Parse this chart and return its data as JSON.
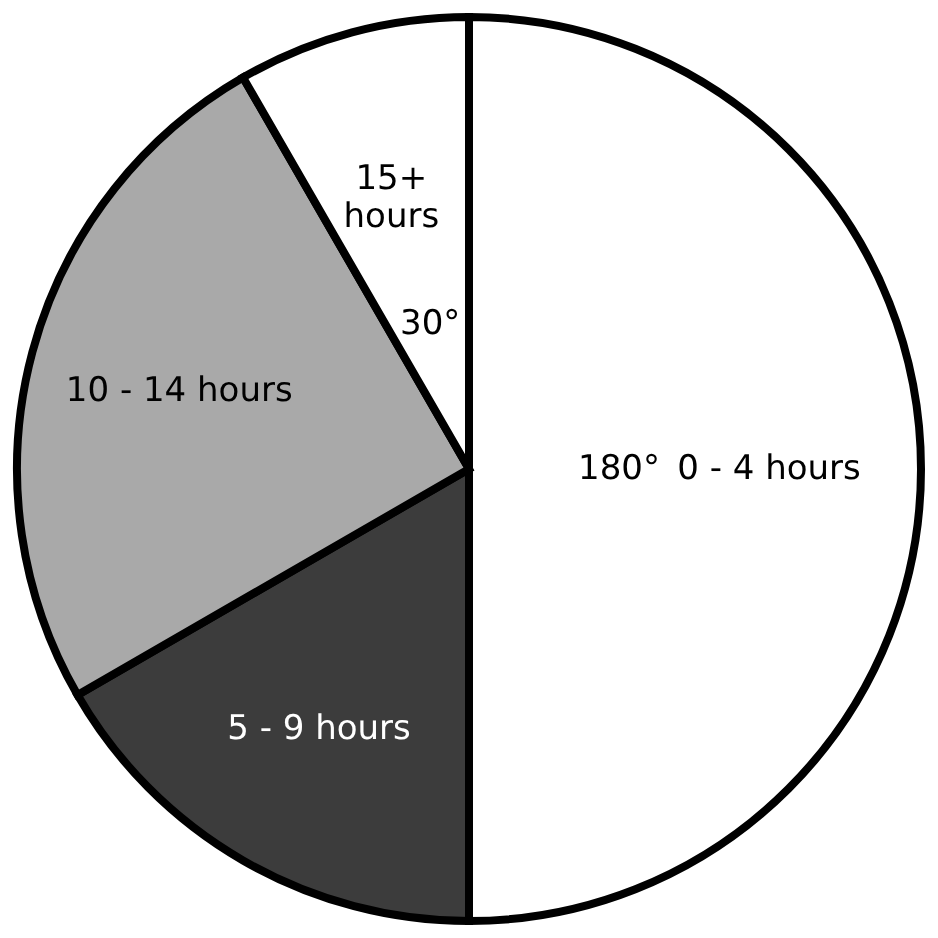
{
  "chart_data": {
    "type": "pie",
    "categories": [
      "0 - 4 hours",
      "5 - 9 hours",
      "10 - 14 hours",
      "15+ hours"
    ],
    "values": [
      180,
      60,
      90,
      30
    ],
    "colors": [
      "#ffffff",
      "#3c3c3c",
      "#a9a9a9",
      "#ffffff"
    ],
    "value_labels": [
      "180°",
      null,
      null,
      "30°"
    ]
  }
}
